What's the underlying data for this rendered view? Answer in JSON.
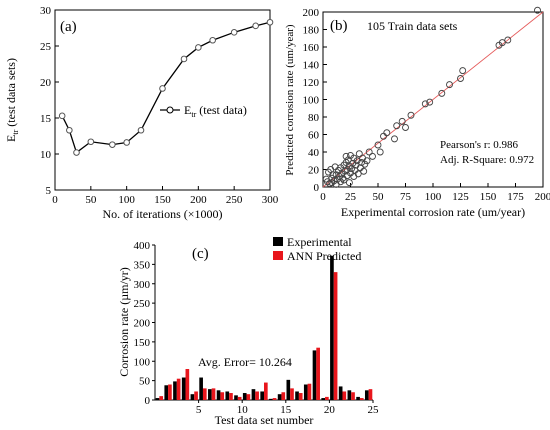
{
  "chart_data": [
    {
      "panel": "(a)",
      "type": "line",
      "xlabel": "No. of iterations (×1000)",
      "ylabel_main": "E",
      "ylabel_sub": "tr",
      "ylabel_rest": " (test data sets)",
      "xlim": [
        0,
        300
      ],
      "ylim": [
        5,
        30
      ],
      "xticks": [
        0,
        50,
        100,
        150,
        200,
        250,
        300
      ],
      "yticks": [
        5,
        10,
        15,
        20,
        25,
        30
      ],
      "legend_main": "E",
      "legend_sub": "tr",
      "legend_rest": " (test data)",
      "legend_position": "center-right",
      "series": [
        {
          "x": [
            10,
            20,
            30,
            50,
            80,
            100,
            120,
            150,
            180,
            200,
            220,
            250,
            280,
            300
          ],
          "y": [
            15.3,
            13.3,
            10.2,
            11.7,
            11.3,
            11.6,
            13.3,
            19.1,
            23.2,
            24.8,
            25.8,
            26.9,
            27.8,
            28.3
          ]
        }
      ]
    },
    {
      "panel": "(b)",
      "type": "scatter",
      "title": "105 Train data sets",
      "xlabel": "Experimental corrosion rate (um/year)",
      "ylabel": "Predicted corrosion rate (um/year)",
      "xlim": [
        0,
        200
      ],
      "ylim": [
        0,
        200
      ],
      "xticks": [
        0,
        25,
        50,
        75,
        100,
        125,
        150,
        175,
        200
      ],
      "yticks": [
        0,
        20,
        40,
        60,
        80,
        100,
        120,
        140,
        160,
        180,
        200
      ],
      "annotations": [
        "Pearson's r: 0.986",
        "Adj. R-Square: 0.972"
      ],
      "fit_line": [
        [
          0,
          0
        ],
        [
          200,
          200
        ]
      ],
      "points": [
        [
          4,
          6
        ],
        [
          6,
          4
        ],
        [
          8,
          10
        ],
        [
          10,
          7
        ],
        [
          12,
          14
        ],
        [
          13,
          9
        ],
        [
          14,
          19
        ],
        [
          15,
          12
        ],
        [
          16,
          22
        ],
        [
          17,
          15
        ],
        [
          18,
          10
        ],
        [
          19,
          25
        ],
        [
          20,
          18
        ],
        [
          21,
          28
        ],
        [
          22,
          13
        ],
        [
          22,
          20
        ],
        [
          23,
          31
        ],
        [
          24,
          24
        ],
        [
          25,
          16
        ],
        [
          25,
          36
        ],
        [
          26,
          21
        ],
        [
          27,
          27
        ],
        [
          28,
          12
        ],
        [
          28,
          33
        ],
        [
          29,
          19
        ],
        [
          30,
          25
        ],
        [
          31,
          30
        ],
        [
          32,
          15
        ],
        [
          33,
          38
        ],
        [
          34,
          22
        ],
        [
          35,
          28
        ],
        [
          36,
          33
        ],
        [
          37,
          18
        ],
        [
          38,
          26
        ],
        [
          40,
          30
        ],
        [
          42,
          40
        ],
        [
          45,
          35
        ],
        [
          5,
          17
        ],
        [
          7,
          20
        ],
        [
          9,
          14
        ],
        [
          11,
          23
        ],
        [
          3,
          9
        ],
        [
          8,
          5
        ],
        [
          12,
          3
        ],
        [
          16,
          6
        ],
        [
          19,
          8
        ],
        [
          24,
          5
        ],
        [
          21,
          35
        ],
        [
          50,
          48
        ],
        [
          52,
          40
        ],
        [
          55,
          58
        ],
        [
          58,
          62
        ],
        [
          65,
          55
        ],
        [
          67,
          70
        ],
        [
          72,
          75
        ],
        [
          75,
          68
        ],
        [
          80,
          82
        ],
        [
          93,
          95
        ],
        [
          97,
          97
        ],
        [
          108,
          107
        ],
        [
          115,
          117
        ],
        [
          125,
          124
        ],
        [
          127,
          133
        ],
        [
          160,
          162
        ],
        [
          163,
          165
        ],
        [
          168,
          168
        ],
        [
          195,
          202
        ]
      ]
    },
    {
      "panel": "(c)",
      "type": "bar",
      "xlabel": "Test data set number",
      "ylabel": "Corrosion rate (µm/yr)",
      "xlim": [
        0,
        25
      ],
      "ylim": [
        0,
        400
      ],
      "xticks": [
        5,
        10,
        15,
        20,
        25
      ],
      "yticks": [
        0,
        50,
        100,
        150,
        200,
        250,
        300,
        350,
        400
      ],
      "annotation": "Avg. Error= 10.264",
      "legend_position": "top-right",
      "categories": [
        1,
        2,
        3,
        4,
        5,
        6,
        7,
        8,
        9,
        10,
        11,
        12,
        13,
        14,
        15,
        16,
        17,
        18,
        19,
        20,
        21,
        22,
        23,
        24,
        25
      ],
      "series": [
        {
          "name": "Experimental",
          "color": "#000000",
          "values": [
            5,
            38,
            48,
            58,
            15,
            58,
            28,
            25,
            22,
            12,
            18,
            28,
            22,
            3,
            15,
            52,
            22,
            40,
            128,
            5,
            372,
            35,
            25,
            8,
            25
          ]
        },
        {
          "name": "ANN Predicted",
          "color": "#e8161c",
          "values": [
            10,
            40,
            55,
            80,
            22,
            30,
            30,
            20,
            18,
            8,
            15,
            22,
            45,
            5,
            20,
            30,
            18,
            42,
            135,
            8,
            330,
            22,
            20,
            5,
            28
          ]
        }
      ]
    }
  ]
}
